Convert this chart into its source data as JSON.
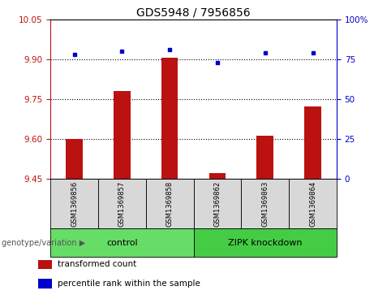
{
  "title": "GDS5948 / 7956856",
  "samples": [
    "GSM1369856",
    "GSM1369857",
    "GSM1369858",
    "GSM1369862",
    "GSM1369863",
    "GSM1369864"
  ],
  "red_values": [
    9.6,
    9.78,
    9.905,
    9.47,
    9.61,
    9.72
  ],
  "blue_values": [
    78,
    80,
    81,
    73,
    79,
    79
  ],
  "ylim_left": [
    9.45,
    10.05
  ],
  "ylim_right": [
    0,
    100
  ],
  "yticks_left": [
    9.45,
    9.6,
    9.75,
    9.9,
    10.05
  ],
  "yticks_right": [
    0,
    25,
    50,
    75,
    100
  ],
  "groups": [
    {
      "label": "control",
      "indices": [
        0,
        1,
        2
      ],
      "color": "#66dd66"
    },
    {
      "label": "ZIPK knockdown",
      "indices": [
        3,
        4,
        5
      ],
      "color": "#44cc44"
    }
  ],
  "bar_color": "#bb1111",
  "dot_color": "#0000cc",
  "bar_bottom": 9.45,
  "bg_color": "#d8d8d8",
  "legend_items": [
    {
      "color": "#bb1111",
      "label": "transformed count"
    },
    {
      "color": "#0000cc",
      "label": "percentile rank within the sample"
    }
  ],
  "group_label_prefix": "genotype/variation",
  "title_fontsize": 10,
  "tick_fontsize": 7.5,
  "sample_fontsize": 6,
  "group_fontsize": 8
}
